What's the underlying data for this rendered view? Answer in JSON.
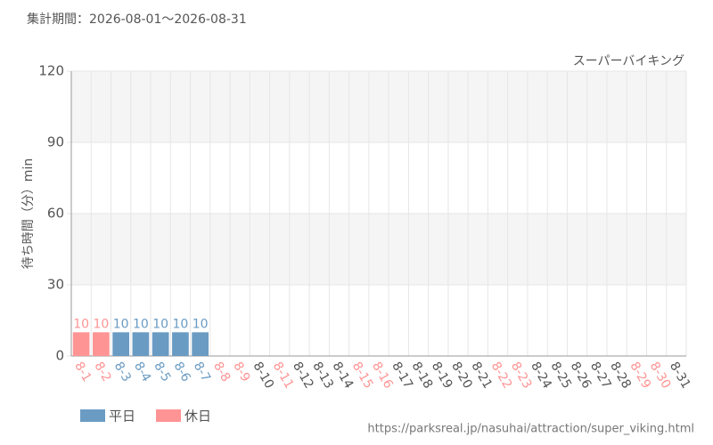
{
  "chart_data": {
    "type": "bar",
    "period": "集計期間：2026-08-01～2026-08-31",
    "subtitle": "スーパーバイキング",
    "y_label": "待ち時間（分）min",
    "url": "https://parksreal.jp/nasuhai/attraction/super_viking.html",
    "categories": [
      "8-1",
      "8-2",
      "8-3",
      "8-4",
      "8-5",
      "8-6",
      "8-7",
      "8-8",
      "8-9",
      "8-10",
      "8-11",
      "8-12",
      "8-13",
      "8-14",
      "8-15",
      "8-16",
      "8-17",
      "8-18",
      "8-19",
      "8-20",
      "8-21",
      "8-22",
      "8-23",
      "8-24",
      "8-25",
      "8-26",
      "8-27",
      "8-28",
      "8-29",
      "8-30",
      "8-31"
    ],
    "values": [
      10,
      10,
      10,
      10,
      10,
      10,
      10,
      null,
      null,
      null,
      null,
      null,
      null,
      null,
      null,
      null,
      null,
      null,
      null,
      null,
      null,
      null,
      null,
      null,
      null,
      null,
      null,
      null,
      null,
      null,
      null
    ],
    "category_colors": [
      "#ff9494",
      "#ff9494",
      "#6a9bc3",
      "#6a9bc3",
      "#6a9bc3",
      "#6a9bc3",
      "#6a9bc3",
      "#ff9494",
      "#ff9494",
      "#555555",
      "#ff9494",
      "#555555",
      "#555555",
      "#555555",
      "#ff9494",
      "#ff9494",
      "#555555",
      "#555555",
      "#555555",
      "#555555",
      "#555555",
      "#ff9494",
      "#ff9494",
      "#555555",
      "#555555",
      "#555555",
      "#555555",
      "#555555",
      "#ff9494",
      "#ff9494",
      "#555555"
    ],
    "legend": [
      {
        "name": "平日",
        "color": "#6a9bc3"
      },
      {
        "name": "休日",
        "color": "#ff9494"
      }
    ],
    "ylim": [
      0,
      120
    ],
    "yticks": [
      0,
      30,
      60,
      90,
      120
    ],
    "grid": true
  }
}
